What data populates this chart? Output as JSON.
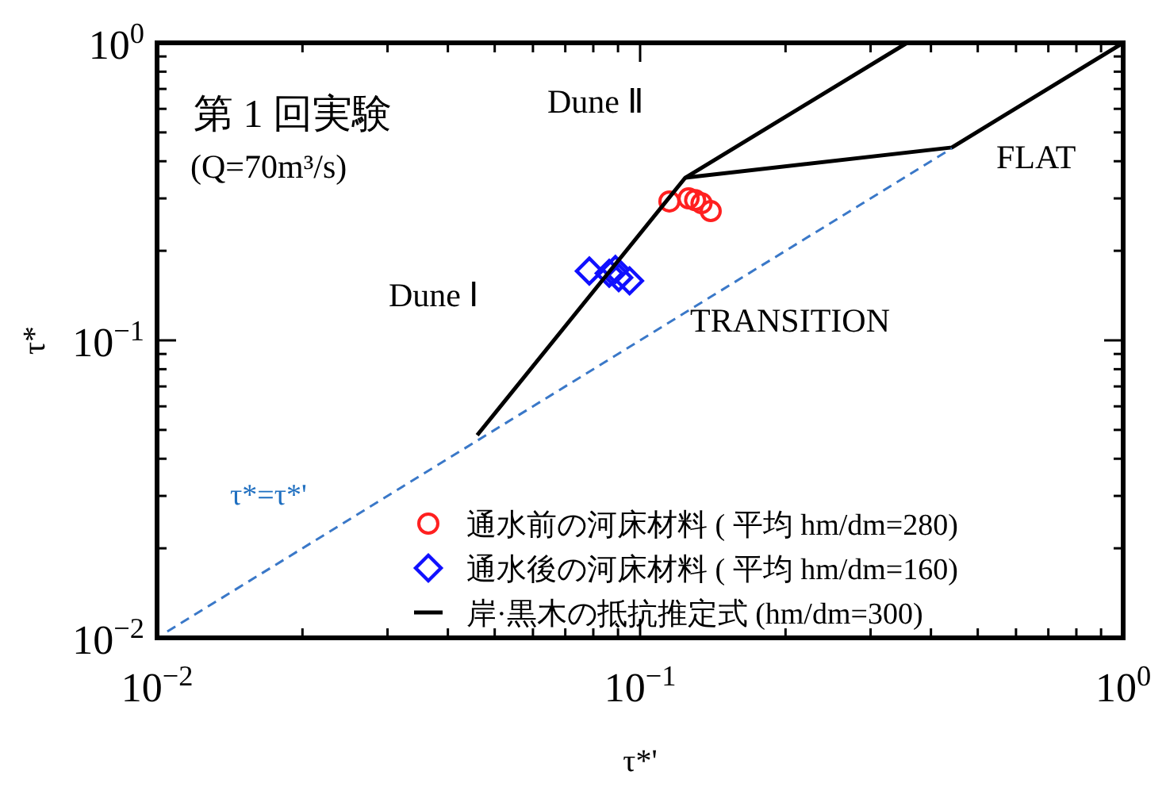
{
  "chart_data": {
    "type": "scatter",
    "xlabel": "τ*'",
    "ylabel": "τ*",
    "log": "xy",
    "xlim": [
      0.01,
      1
    ],
    "ylim": [
      0.01,
      1
    ],
    "xticks": [
      {
        "value": 0.01,
        "label": "10$^{−2}$"
      },
      {
        "value": 0.1,
        "label": "10$^{−1}$"
      },
      {
        "value": 1,
        "label": "10$^{0}$"
      }
    ],
    "yticks": [
      {
        "value": 0.01,
        "label": "10$^{−2}$"
      },
      {
        "value": 0.1,
        "label": "10$^{−1}$"
      },
      {
        "value": 1,
        "label": "10$^{0}$"
      }
    ],
    "legend": "bottom right",
    "series": [
      {
        "name": "通水前の河床材料 ( 平均 hm/dm=280)",
        "marker": "circle",
        "color": "#ff2020",
        "x": [
          0.115,
          0.126,
          0.13,
          0.134,
          0.14
        ],
        "values": [
          0.293,
          0.3,
          0.296,
          0.289,
          0.272
        ]
      },
      {
        "name": "通水後の河床材料 ( 平均 hm/dm=160)",
        "marker": "diamond",
        "color": "#1010ff",
        "x": [
          0.0785,
          0.0863,
          0.0889,
          0.0903,
          0.0951
        ],
        "values": [
          0.171,
          0.168,
          0.173,
          0.1625,
          0.1585
        ]
      },
      {
        "name": "岸·黒木の抵抗推定式 (hm/dm=300)",
        "type": "line",
        "line_style": "solid",
        "color": "#000000",
        "x": [
          0.046,
          0.124,
          0.357
        ],
        "values": [
          0.048,
          0.352,
          1
        ]
      },
      {
        "type": "line",
        "line_style": "solid",
        "color": "#000000",
        "x": [
          0.124,
          0.442,
          1
        ],
        "values": [
          0.352,
          0.445,
          1
        ]
      },
      {
        "type": "line",
        "line_style": "dashed",
        "color": "#3a78c8",
        "x": [
          0.0105,
          0.442
        ],
        "values": [
          0.0105,
          0.442
        ]
      }
    ],
    "annotations": [
      "第 1 回実験",
      "(Q=70m³/s)",
      "Dune Ⅱ",
      "Dune Ⅰ",
      "FLAT",
      "TRANSITION",
      "τ*=τ*'"
    ]
  }
}
